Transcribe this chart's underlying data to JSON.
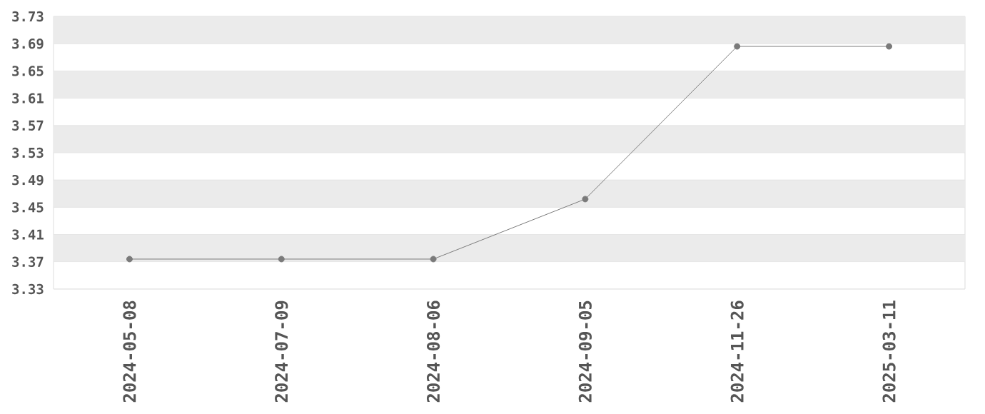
{
  "chart_data": {
    "type": "line",
    "categories": [
      "2024-05-08",
      "2024-07-09",
      "2024-08-06",
      "2024-09-05",
      "2024-11-26",
      "2025-03-11"
    ],
    "series": [
      {
        "color": "#7a7a7a",
        "values": [
          3.374,
          3.374,
          3.374,
          3.462,
          3.686,
          3.686
        ]
      }
    ],
    "ylim": [
      3.33,
      3.73
    ],
    "yticks": [
      3.33,
      3.37,
      3.41,
      3.45,
      3.49,
      3.53,
      3.57,
      3.61,
      3.65,
      3.69,
      3.73
    ],
    "grid": "y",
    "marker": "circle",
    "line_style": "solid"
  }
}
